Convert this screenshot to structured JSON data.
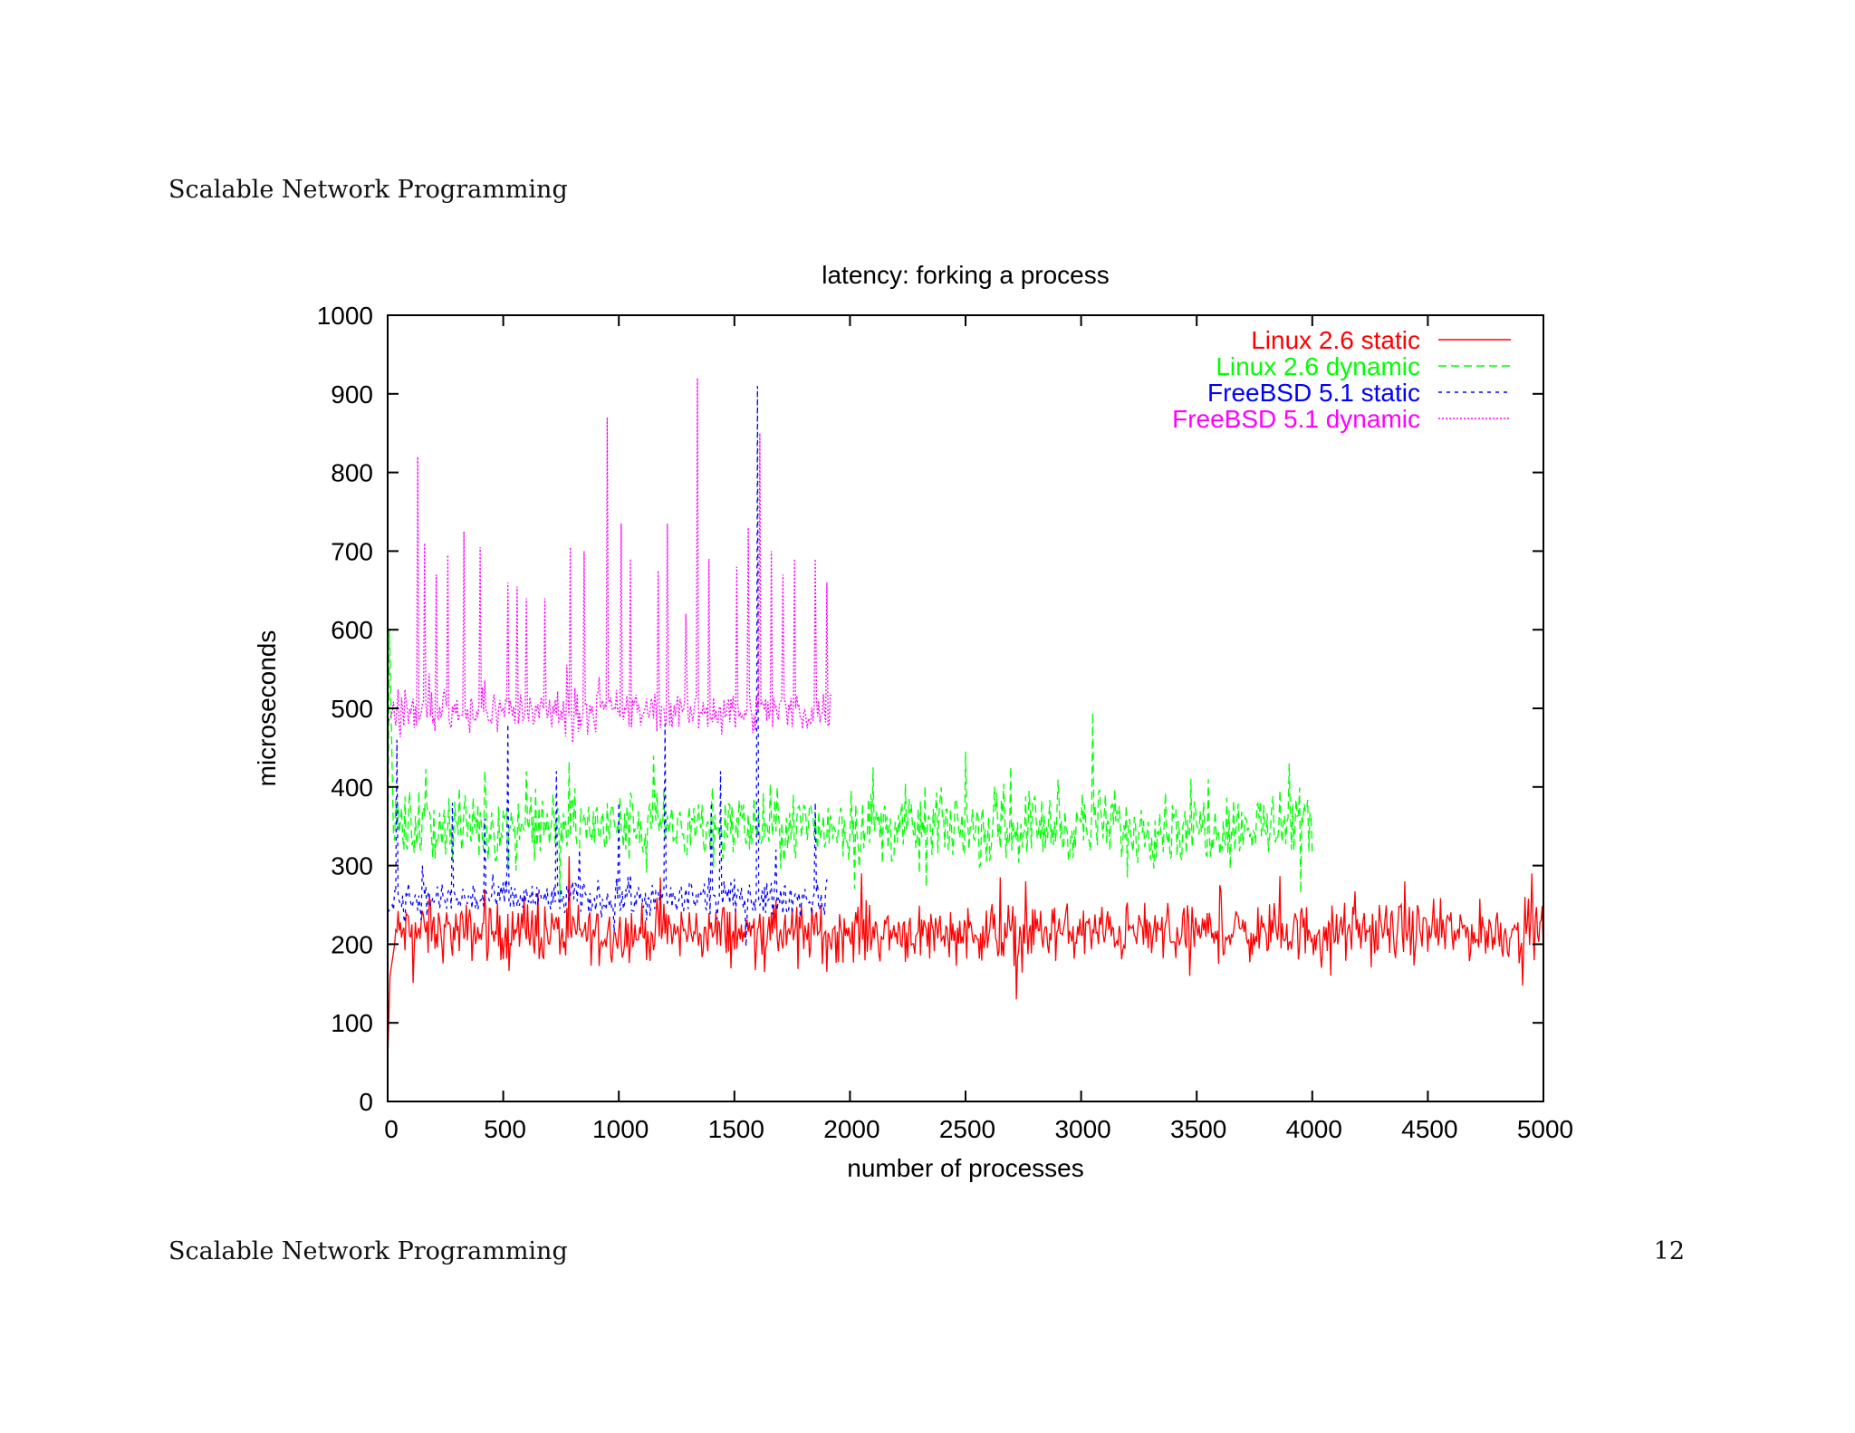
{
  "page": {
    "header": "Scalable Network Programming",
    "footer": "Scalable Network Programming",
    "page_number": "12"
  },
  "chart_data": {
    "type": "line",
    "title": "latency: forking a process",
    "xlabel": "number of processes",
    "ylabel": "microseconds",
    "xlim": [
      0,
      5000
    ],
    "ylim": [
      0,
      1000
    ],
    "xticks": [
      0,
      500,
      1000,
      1500,
      2000,
      2500,
      3000,
      3500,
      4000,
      4500,
      5000
    ],
    "yticks": [
      0,
      100,
      200,
      300,
      400,
      500,
      600,
      700,
      800,
      900,
      1000
    ],
    "grid": false,
    "legend_position": "top-right",
    "series": [
      {
        "name": "Linux 2.6 static",
        "color": "#ff0000",
        "dash": "solid",
        "x_range": [
          0,
          5000
        ],
        "baseline": 215,
        "noise": 22,
        "initial_values": [
          [
            0,
            50
          ],
          [
            10,
            160
          ],
          [
            30,
            200
          ]
        ],
        "spikes": [
          [
            180,
            260
          ],
          [
            420,
            270
          ],
          [
            650,
            265
          ],
          [
            1180,
            285
          ],
          [
            1900,
            165
          ],
          [
            2050,
            290
          ],
          [
            2650,
            285
          ],
          [
            2720,
            130
          ],
          [
            2760,
            280
          ],
          [
            3600,
            275
          ],
          [
            4080,
            160
          ],
          [
            4400,
            280
          ],
          [
            4950,
            290
          ]
        ]
      },
      {
        "name": "Linux 2.6 dynamic",
        "color": "#00ff00",
        "dash": "dashed",
        "x_range": [
          0,
          4000
        ],
        "baseline": 350,
        "noise": 28,
        "initial_values": [
          [
            0,
            300
          ],
          [
            8,
            600
          ],
          [
            25,
            340
          ]
        ],
        "spikes": [
          [
            600,
            420
          ],
          [
            1150,
            440
          ],
          [
            2100,
            425
          ],
          [
            2500,
            445
          ],
          [
            3050,
            495
          ],
          [
            3550,
            410
          ],
          [
            3900,
            430
          ],
          [
            2300,
            290
          ],
          [
            3200,
            285
          ],
          [
            3950,
            265
          ]
        ]
      },
      {
        "name": "FreeBSD 5.1 static",
        "color": "#0000ff",
        "dash": "dotted",
        "x_range": [
          0,
          1900
        ],
        "baseline": 258,
        "noise": 14,
        "initial_values": [
          [
            0,
            240
          ],
          [
            20,
            250
          ]
        ],
        "spikes": [
          [
            40,
            460
          ],
          [
            150,
            300
          ],
          [
            280,
            380
          ],
          [
            420,
            360
          ],
          [
            520,
            480
          ],
          [
            730,
            420
          ],
          [
            830,
            320
          ],
          [
            1000,
            380
          ],
          [
            1200,
            480
          ],
          [
            1400,
            380
          ],
          [
            1440,
            420
          ],
          [
            1600,
            910
          ],
          [
            1680,
            320
          ],
          [
            1850,
            380
          ]
        ]
      },
      {
        "name": "FreeBSD 5.1 dynamic",
        "color": "#ff00ff",
        "dash": "fine-dotted",
        "x_range": [
          0,
          1920
        ],
        "baseline": 497,
        "noise": 16,
        "initial_values": [
          [
            0,
            480
          ],
          [
            20,
            495
          ]
        ],
        "spikes": [
          [
            130,
            820
          ],
          [
            160,
            710
          ],
          [
            210,
            670
          ],
          [
            260,
            695
          ],
          [
            330,
            725
          ],
          [
            400,
            705
          ],
          [
            520,
            660
          ],
          [
            560,
            655
          ],
          [
            600,
            640
          ],
          [
            680,
            640
          ],
          [
            790,
            705
          ],
          [
            850,
            700
          ],
          [
            950,
            870
          ],
          [
            1010,
            735
          ],
          [
            1050,
            690
          ],
          [
            1170,
            675
          ],
          [
            1210,
            735
          ],
          [
            1290,
            620
          ],
          [
            1340,
            920
          ],
          [
            1390,
            690
          ],
          [
            1510,
            680
          ],
          [
            1560,
            730
          ],
          [
            1610,
            850
          ],
          [
            1660,
            700
          ],
          [
            1710,
            670
          ],
          [
            1760,
            690
          ],
          [
            1850,
            690
          ],
          [
            1900,
            660
          ]
        ]
      }
    ]
  }
}
